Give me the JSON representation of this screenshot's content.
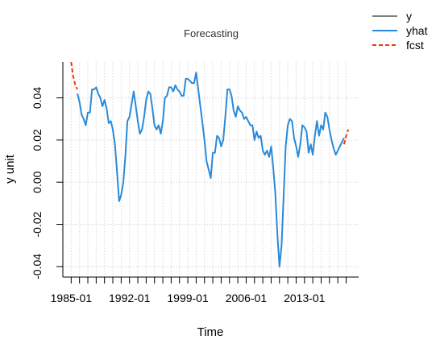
{
  "chart_data": {
    "type": "line",
    "title": "Forecasting",
    "xlabel": "Time",
    "ylabel": "y unit",
    "xlim": [
      1984.0,
      2019.5
    ],
    "ylim": [
      -0.045,
      0.057
    ],
    "x_ticks": [
      1985,
      1986,
      1987,
      1988,
      1989,
      1990,
      1991,
      1992,
      1993,
      1994,
      1995,
      1996,
      1997,
      1998,
      1999,
      2000,
      2001,
      2002,
      2003,
      2004,
      2005,
      2006,
      2007,
      2008,
      2009,
      2010,
      2011,
      2012,
      2013,
      2014,
      2015,
      2016,
      2017,
      2018
    ],
    "x_tick_labels": [
      {
        "x": 1985,
        "label": "1985-01"
      },
      {
        "x": 1992,
        "label": "1992-01"
      },
      {
        "x": 1999,
        "label": "1999-01"
      },
      {
        "x": 2006,
        "label": "2006-01"
      },
      {
        "x": 2013,
        "label": "2013-01"
      }
    ],
    "y_ticks": [
      -0.04,
      -0.02,
      0.0,
      0.02,
      0.04
    ],
    "y_tick_labels": [
      "-0.04",
      "-0.02",
      "0.00",
      "0.02",
      "0.04"
    ],
    "grid": true,
    "legend_position": "top-right outside plot",
    "series": [
      {
        "name": "y",
        "color": "#000000",
        "style": "solid",
        "x": [],
        "y": []
      },
      {
        "name": "yhat",
        "color": "#2a8ad8",
        "style": "solid",
        "x": [
          1985.75,
          1986.0,
          1986.25,
          1986.5,
          1986.75,
          1987.0,
          1987.25,
          1987.5,
          1987.75,
          1988.0,
          1988.25,
          1988.5,
          1988.75,
          1989.0,
          1989.25,
          1989.5,
          1989.75,
          1990.0,
          1990.25,
          1990.5,
          1990.75,
          1991.0,
          1991.25,
          1991.5,
          1991.75,
          1992.0,
          1992.25,
          1992.5,
          1992.75,
          1993.0,
          1993.25,
          1993.5,
          1993.75,
          1994.0,
          1994.25,
          1994.5,
          1994.75,
          1995.0,
          1995.25,
          1995.5,
          1995.75,
          1996.0,
          1996.25,
          1996.5,
          1996.75,
          1997.0,
          1997.25,
          1997.5,
          1997.75,
          1998.0,
          1998.25,
          1998.5,
          1998.75,
          1999.0,
          1999.25,
          1999.5,
          1999.75,
          2000.0,
          2000.25,
          2000.5,
          2000.75,
          2001.0,
          2001.25,
          2001.5,
          2001.75,
          2002.0,
          2002.25,
          2002.5,
          2002.75,
          2003.0,
          2003.25,
          2003.5,
          2003.75,
          2004.0,
          2004.25,
          2004.5,
          2004.75,
          2005.0,
          2005.25,
          2005.5,
          2005.75,
          2006.0,
          2006.25,
          2006.5,
          2006.75,
          2007.0,
          2007.25,
          2007.5,
          2007.75,
          2008.0,
          2008.25,
          2008.5,
          2008.75,
          2009.0,
          2009.25,
          2009.5,
          2009.75,
          2010.0,
          2010.25,
          2010.5,
          2010.75,
          2011.0,
          2011.25,
          2011.5,
          2011.75,
          2012.0,
          2012.25,
          2012.5,
          2012.75,
          2013.0,
          2013.25,
          2013.5,
          2013.75,
          2014.0,
          2014.25,
          2014.5,
          2014.75,
          2015.0,
          2015.25,
          2015.5,
          2015.75,
          2016.0,
          2016.25,
          2016.5,
          2016.75,
          2017.0,
          2017.25,
          2017.5,
          2017.75
        ],
        "y": [
          0.042,
          0.038,
          0.032,
          0.03,
          0.027,
          0.033,
          0.033,
          0.044,
          0.044,
          0.045,
          0.042,
          0.04,
          0.036,
          0.039,
          0.035,
          0.028,
          0.029,
          0.025,
          0.018,
          0.005,
          -0.009,
          -0.006,
          0.0,
          0.012,
          0.029,
          0.031,
          0.037,
          0.043,
          0.036,
          0.029,
          0.023,
          0.025,
          0.031,
          0.039,
          0.043,
          0.042,
          0.035,
          0.027,
          0.025,
          0.027,
          0.023,
          0.029,
          0.04,
          0.041,
          0.045,
          0.045,
          0.043,
          0.046,
          0.044,
          0.043,
          0.041,
          0.041,
          0.049,
          0.049,
          0.048,
          0.047,
          0.047,
          0.052,
          0.044,
          0.036,
          0.028,
          0.02,
          0.01,
          0.006,
          0.002,
          0.014,
          0.014,
          0.022,
          0.021,
          0.017,
          0.02,
          0.031,
          0.044,
          0.044,
          0.041,
          0.034,
          0.031,
          0.036,
          0.034,
          0.033,
          0.03,
          0.031,
          0.029,
          0.027,
          0.027,
          0.02,
          0.024,
          0.021,
          0.022,
          0.015,
          0.013,
          0.015,
          0.012,
          0.017,
          0.007,
          -0.005,
          -0.025,
          -0.04,
          -0.03,
          -0.006,
          0.017,
          0.027,
          0.03,
          0.029,
          0.021,
          0.017,
          0.012,
          0.018,
          0.027,
          0.026,
          0.024,
          0.014,
          0.018,
          0.013,
          0.022,
          0.029,
          0.022,
          0.027,
          0.025,
          0.033,
          0.031,
          0.025,
          0.02,
          0.016,
          0.013,
          0.015,
          0.017,
          0.019,
          0.021
        ],
        "y_fixup": null
      },
      {
        "name": "fcst",
        "color": "#ff3300",
        "style": "dashed",
        "x": [
          1985.0,
          1985.25,
          1985.5,
          1985.75,
          2017.75,
          2018.0,
          2018.25
        ],
        "y": [
          0.057,
          0.05,
          0.046,
          0.044,
          0.018,
          0.022,
          0.025
        ]
      }
    ]
  }
}
